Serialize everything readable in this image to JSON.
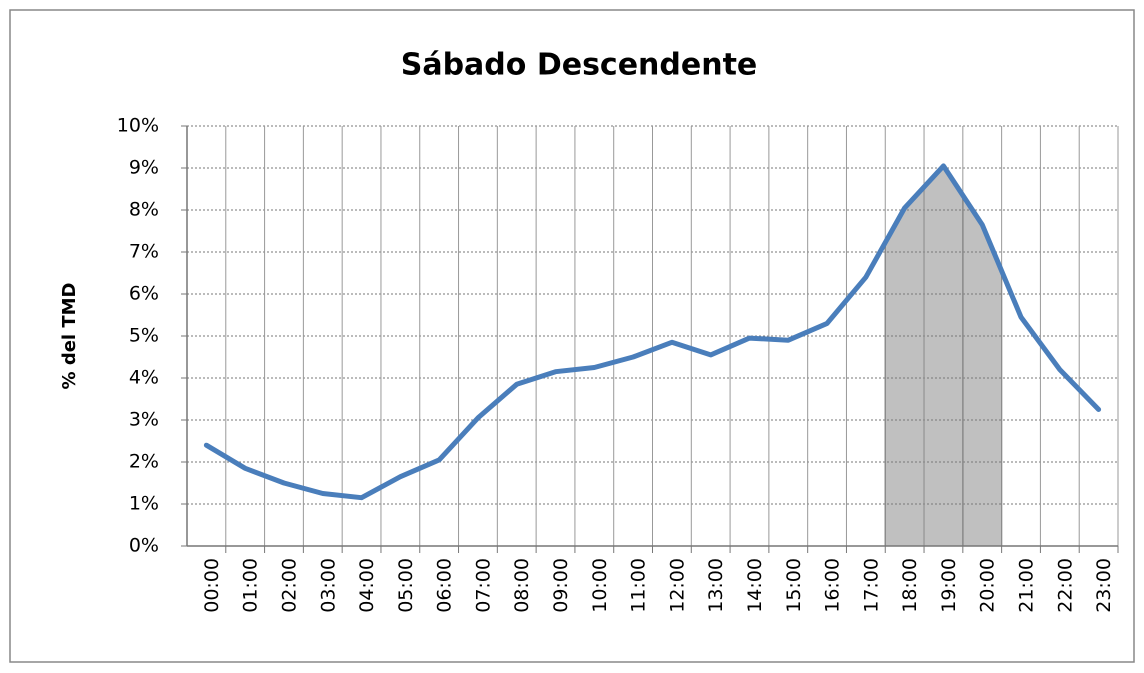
{
  "chart_data": {
    "type": "line",
    "title": "Sábado Descendente",
    "y_label": "% del TMD",
    "categories": [
      "00:00",
      "01:00",
      "02:00",
      "03:00",
      "04:00",
      "05:00",
      "06:00",
      "07:00",
      "08:00",
      "09:00",
      "10:00",
      "11:00",
      "12:00",
      "13:00",
      "14:00",
      "15:00",
      "16:00",
      "17:00",
      "18:00",
      "19:00",
      "20:00",
      "21:00",
      "22:00",
      "23:00"
    ],
    "values": [
      2.4,
      1.85,
      1.5,
      1.25,
      1.15,
      1.65,
      2.05,
      3.05,
      3.85,
      4.15,
      4.25,
      4.5,
      4.85,
      4.55,
      4.95,
      4.9,
      5.3,
      6.4,
      8.05,
      9.05,
      7.65,
      5.45,
      4.2,
      3.25
    ],
    "color": "#4a7ebb",
    "shade_color": "#c0c0c0",
    "shaded_categories": [
      18,
      19,
      20
    ],
    "ylim": [
      0,
      10
    ],
    "yticks": [
      {
        "value": 0,
        "label": "0%"
      },
      {
        "value": 1,
        "label": "1%"
      },
      {
        "value": 2,
        "label": "2%"
      },
      {
        "value": 3,
        "label": "3%"
      },
      {
        "value": 4,
        "label": "4%"
      },
      {
        "value": 5,
        "label": "5%"
      },
      {
        "value": 6,
        "label": "6%"
      },
      {
        "value": 7,
        "label": "7%"
      },
      {
        "value": 8,
        "label": "8%"
      },
      {
        "value": 9,
        "label": "9%"
      },
      {
        "value": 10,
        "label": "10%"
      }
    ],
    "grid": true
  }
}
